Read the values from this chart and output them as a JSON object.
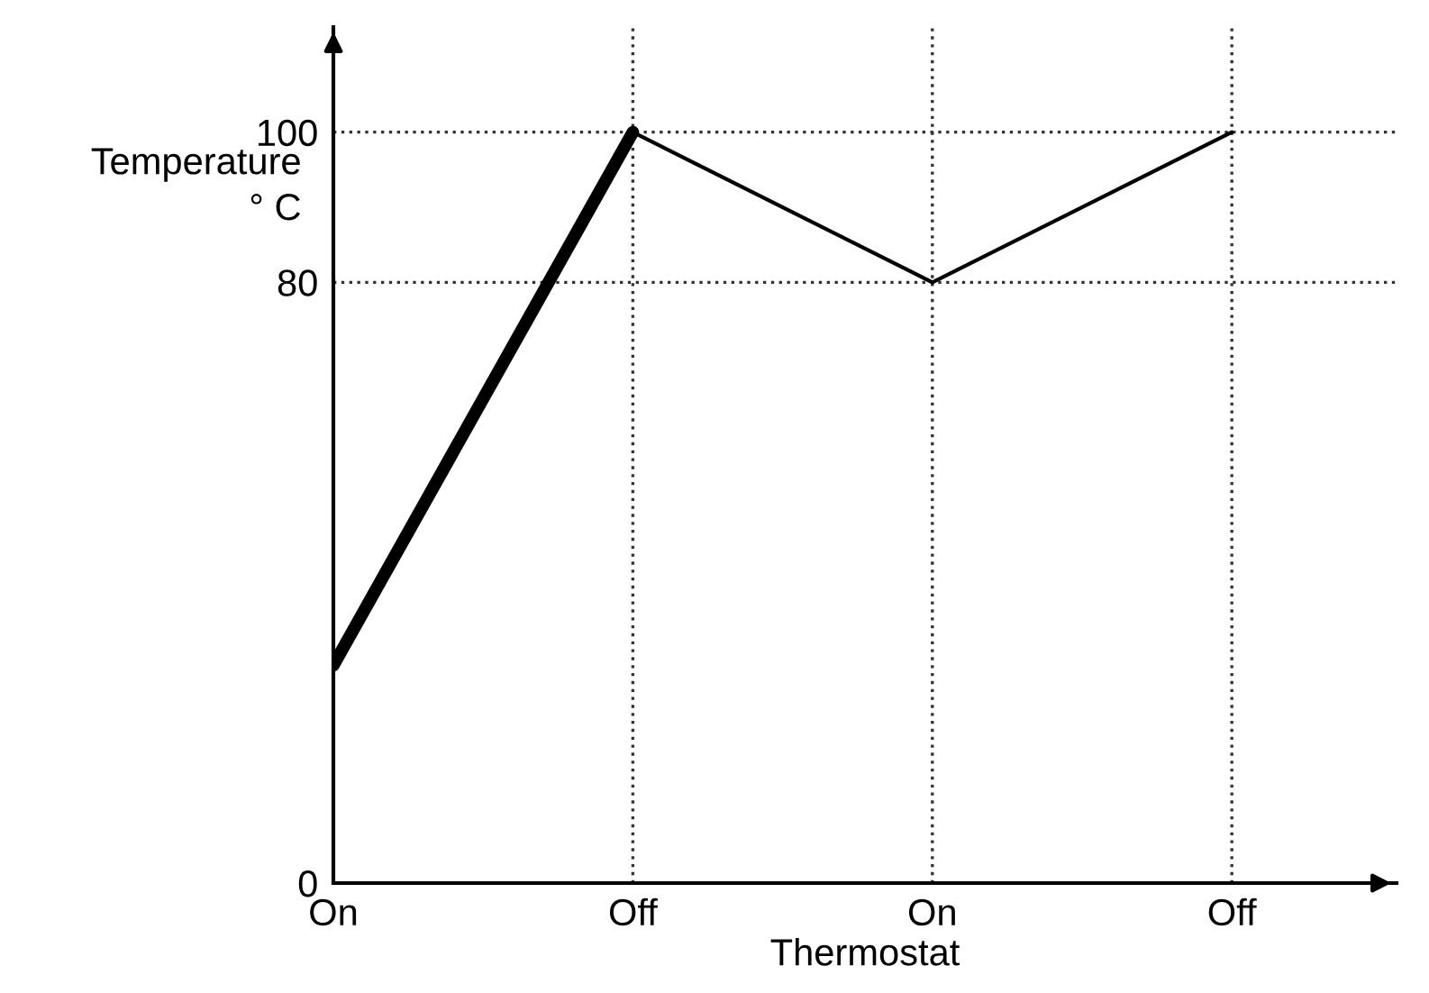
{
  "chart_data": {
    "type": "line",
    "xlabel": "Thermostat",
    "ylabel": "Temperature\n° C",
    "categories": [
      "On",
      "Off",
      "On",
      "Off"
    ],
    "series": [
      {
        "color": "#000000",
        "values": [
          29,
          100,
          null,
          null
        ]
      },
      {
        "color": "#000000",
        "values": [
          null,
          100,
          80,
          100
        ]
      }
    ],
    "ylim": [
      0,
      114
    ],
    "yticks": [
      0,
      80,
      100
    ],
    "grid": true,
    "line_style": "solid"
  }
}
